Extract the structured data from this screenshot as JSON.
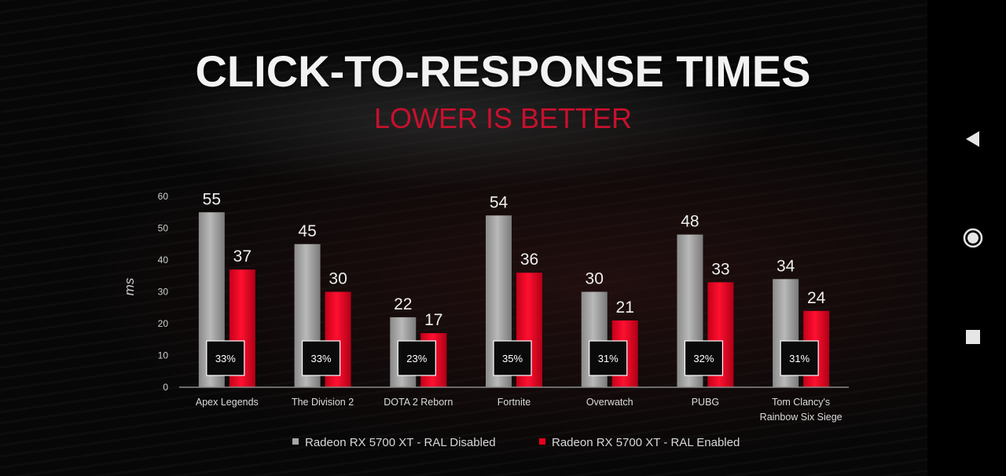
{
  "title": "CLICK-TO-RESPONSE TIMES",
  "subtitle": "LOWER IS BETTER",
  "colors": {
    "disabled": "#a7a7a7",
    "enabled": "#e8001c",
    "subtitle": "#c8102e"
  },
  "chart_data": {
    "type": "bar",
    "title": "CLICK-TO-RESPONSE TIMES",
    "subtitle": "LOWER IS BETTER",
    "ylabel": "ms",
    "xlabel": "",
    "ylim": [
      0,
      60
    ],
    "yticks": [
      0,
      10,
      20,
      30,
      40,
      50,
      60
    ],
    "grid": false,
    "legend_position": "bottom",
    "categories": [
      [
        "Apex Legends"
      ],
      [
        "The Division 2"
      ],
      [
        "DOTA 2 Reborn"
      ],
      [
        "Fortnite"
      ],
      [
        "Overwatch"
      ],
      [
        "PUBG"
      ],
      [
        "Tom Clancy's",
        "Rainbow Six Siege"
      ]
    ],
    "series": [
      {
        "name": "Radeon RX 5700 XT - RAL Disabled",
        "values": [
          55,
          45,
          22,
          54,
          30,
          48,
          34
        ]
      },
      {
        "name": "Radeon RX 5700 XT - RAL Enabled",
        "values": [
          37,
          30,
          17,
          36,
          21,
          33,
          24
        ]
      }
    ],
    "annotations": [
      "33%",
      "33%",
      "23%",
      "35%",
      "31%",
      "32%",
      "31%"
    ]
  },
  "nav": {
    "back_icon": "triangle-left",
    "home_icon": "circle-ring",
    "recents_icon": "square"
  }
}
